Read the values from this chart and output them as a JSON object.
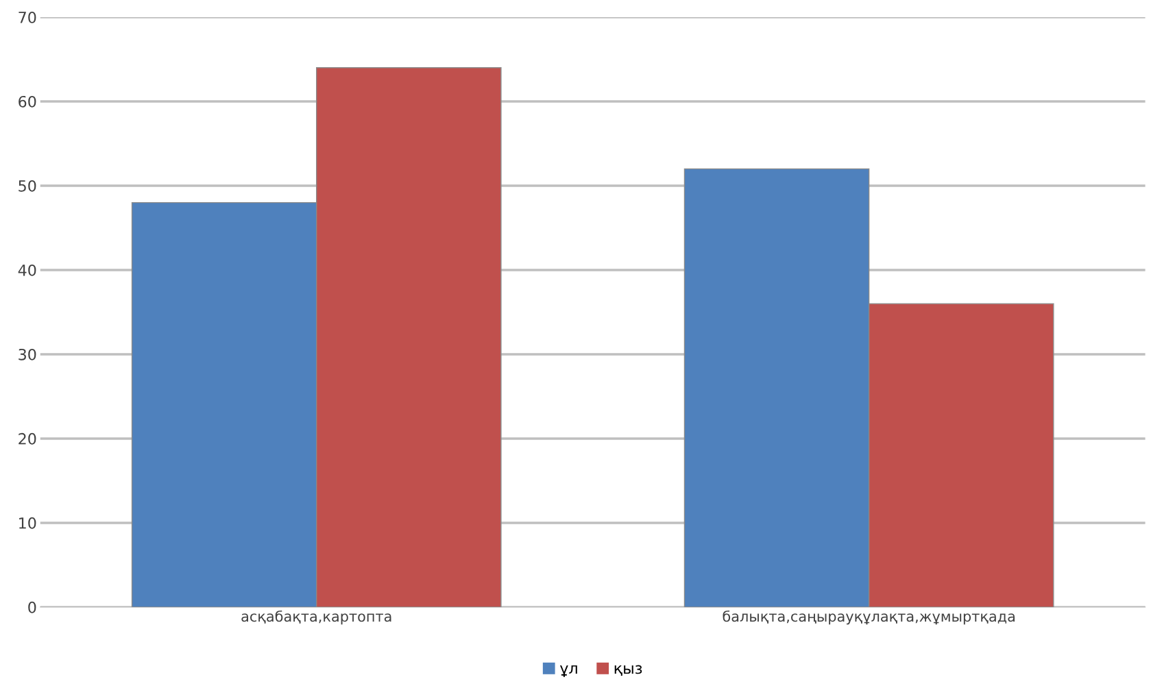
{
  "chart_data": {
    "type": "bar",
    "categories": [
      "асқабақта,картопта",
      "балықта,саңырауқұлақта,жұмыртқада"
    ],
    "series": [
      {
        "name": "ұл",
        "color": "#4f81bd",
        "values": [
          48,
          52
        ]
      },
      {
        "name": "қыз",
        "color": "#c0504d",
        "values": [
          64,
          36
        ]
      }
    ],
    "ylim": [
      0,
      70
    ],
    "yticks": [
      0,
      10,
      20,
      30,
      40,
      50,
      60,
      70
    ],
    "grid": "y",
    "legend": "bottom"
  }
}
